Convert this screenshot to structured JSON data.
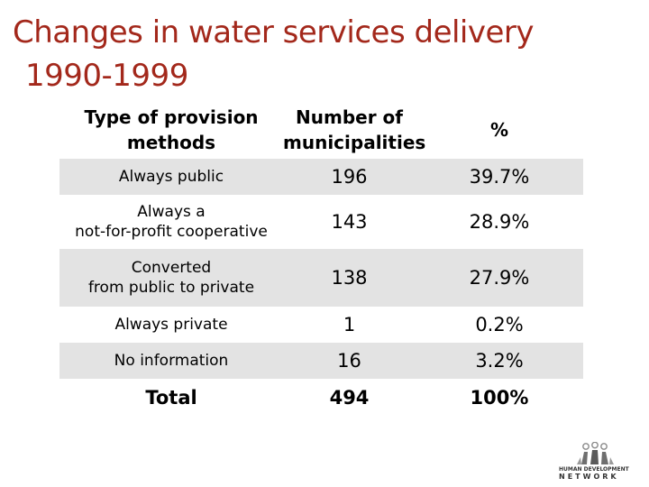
{
  "title": {
    "line1": "Changes in water services delivery",
    "line2": "1990-1999"
  },
  "table": {
    "headers": {
      "method": "Type of provision methods",
      "count": "Number of municipalities",
      "percent": "%"
    },
    "rows": [
      {
        "method": "Always public",
        "count": "196",
        "percent": "39.7%"
      },
      {
        "method_line1": "Always a",
        "method_line2": "not-for-profit cooperative",
        "count": "143",
        "percent": "28.9%"
      },
      {
        "method_line1": "Converted",
        "method_line2": "from public to private",
        "count": "138",
        "percent": "27.9%"
      },
      {
        "method": "Always private",
        "count": "1",
        "percent": "0.2%"
      },
      {
        "method": "No information",
        "count": "16",
        "percent": "3.2%"
      }
    ],
    "total": {
      "label": "Total",
      "count": "494",
      "percent": "100%"
    }
  },
  "logo": {
    "icon": "people-figures-icon",
    "line1": "HUMAN DEVELOPMENT",
    "line2": "NETWORK"
  },
  "colors": {
    "title": "#a3281b",
    "row_shade": "#e3e3e3"
  }
}
